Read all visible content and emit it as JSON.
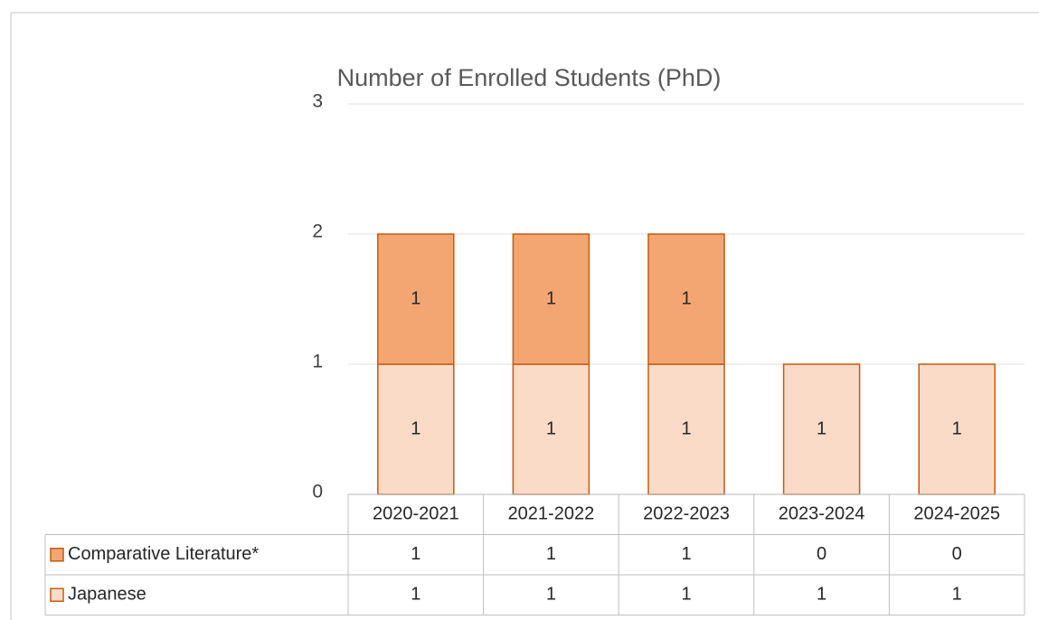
{
  "chart_data": {
    "type": "bar",
    "stacked": true,
    "title": "Number of Enrolled Students (PhD)",
    "categories": [
      "2020-2021",
      "2021-2022",
      "2022-2023",
      "2023-2024",
      "2024-2025"
    ],
    "series": [
      {
        "name": "Comparative Literature*",
        "color": "#F4A672",
        "values": [
          1,
          1,
          1,
          0,
          0
        ]
      },
      {
        "name": "Japanese",
        "color": "#FADBC7",
        "values": [
          1,
          1,
          1,
          1,
          1
        ]
      }
    ],
    "edge_color": "#C55A11",
    "ylim": [
      0,
      3
    ],
    "yticks": [
      0,
      1,
      2,
      3
    ],
    "grid": true,
    "data_table": true
  }
}
